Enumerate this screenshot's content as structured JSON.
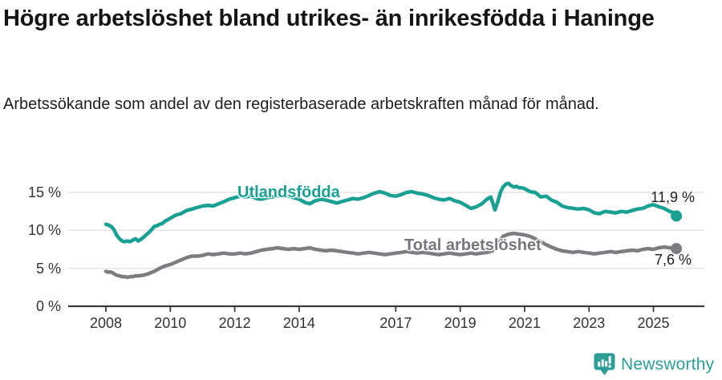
{
  "header": {
    "title": "Högre arbetslöshet bland utrikes- än inrikesfödda i Haninge",
    "subtitle": "Arbetssökande som andel av den registerbaserade arbetskraften månad för månad."
  },
  "footer": {
    "brand": "Newsworthy",
    "logo_icon": "bar-chart-speech-bubble-icon"
  },
  "colors": {
    "foreign_born_line": "#18A093",
    "total_line": "#7c7c81",
    "grid": "#e3e3e3",
    "axis": "#3b3b3b",
    "tick_label": "#333333",
    "logo_teal": "#2D9E95"
  },
  "chart_data": {
    "type": "line",
    "x_unit": "decimal_year",
    "xlim": [
      2007.9,
      2026.4
    ],
    "ylim": [
      0,
      16.5
    ],
    "grid": "horizontal",
    "legend_position": "inline-labels",
    "yticks": [
      {
        "value": 0,
        "label": "0 %"
      },
      {
        "value": 5,
        "label": "5 %"
      },
      {
        "value": 10,
        "label": "10 %"
      },
      {
        "value": 15,
        "label": "15 %"
      }
    ],
    "xticks": [
      {
        "value": 2008,
        "label": "2008"
      },
      {
        "value": 2010,
        "label": "2010"
      },
      {
        "value": 2012,
        "label": "2012"
      },
      {
        "value": 2014,
        "label": "2014"
      },
      {
        "value": 2017,
        "label": "2017"
      },
      {
        "value": 2019,
        "label": "2019"
      },
      {
        "value": 2021,
        "label": "2021"
      },
      {
        "value": 2023,
        "label": "2023"
      },
      {
        "value": 2025,
        "label": "2025"
      }
    ],
    "series": [
      {
        "name": "Utlandsfödda",
        "color": "#18A093",
        "end_label": "11,9 %",
        "end_value": 11.9,
        "points": [
          [
            2008.0,
            10.8
          ],
          [
            2008.08,
            10.7
          ],
          [
            2008.17,
            10.5
          ],
          [
            2008.25,
            10.1
          ],
          [
            2008.33,
            9.4
          ],
          [
            2008.42,
            8.9
          ],
          [
            2008.5,
            8.6
          ],
          [
            2008.58,
            8.5
          ],
          [
            2008.67,
            8.6
          ],
          [
            2008.75,
            8.5
          ],
          [
            2008.83,
            8.7
          ],
          [
            2008.92,
            8.9
          ],
          [
            2009.0,
            8.6
          ],
          [
            2009.08,
            8.8
          ],
          [
            2009.17,
            9.1
          ],
          [
            2009.25,
            9.4
          ],
          [
            2009.33,
            9.7
          ],
          [
            2009.42,
            10.1
          ],
          [
            2009.5,
            10.5
          ],
          [
            2009.58,
            10.6
          ],
          [
            2009.67,
            10.8
          ],
          [
            2009.75,
            10.9
          ],
          [
            2009.83,
            11.2
          ],
          [
            2009.92,
            11.4
          ],
          [
            2010.0,
            11.6
          ],
          [
            2010.17,
            12.0
          ],
          [
            2010.33,
            12.2
          ],
          [
            2010.5,
            12.6
          ],
          [
            2010.67,
            12.8
          ],
          [
            2010.83,
            13.0
          ],
          [
            2011.0,
            13.2
          ],
          [
            2011.17,
            13.3
          ],
          [
            2011.33,
            13.2
          ],
          [
            2011.5,
            13.5
          ],
          [
            2011.67,
            13.8
          ],
          [
            2011.83,
            14.1
          ],
          [
            2012.0,
            14.3
          ],
          [
            2012.17,
            14.5
          ],
          [
            2012.33,
            14.4
          ],
          [
            2012.5,
            14.5
          ],
          [
            2012.67,
            14.2
          ],
          [
            2012.83,
            14.1
          ],
          [
            2013.0,
            14.3
          ],
          [
            2013.17,
            14.4
          ],
          [
            2013.33,
            14.5
          ],
          [
            2013.5,
            14.6
          ],
          [
            2013.67,
            14.5
          ],
          [
            2013.83,
            14.3
          ],
          [
            2014.0,
            14.1
          ],
          [
            2014.17,
            13.7
          ],
          [
            2014.33,
            13.5
          ],
          [
            2014.5,
            13.9
          ],
          [
            2014.67,
            14.1
          ],
          [
            2014.83,
            14.0
          ],
          [
            2015.0,
            13.8
          ],
          [
            2015.17,
            13.6
          ],
          [
            2015.33,
            13.8
          ],
          [
            2015.5,
            14.0
          ],
          [
            2015.67,
            14.2
          ],
          [
            2015.83,
            14.1
          ],
          [
            2016.0,
            14.3
          ],
          [
            2016.17,
            14.6
          ],
          [
            2016.33,
            14.9
          ],
          [
            2016.5,
            15.1
          ],
          [
            2016.67,
            14.9
          ],
          [
            2016.83,
            14.6
          ],
          [
            2017.0,
            14.5
          ],
          [
            2017.17,
            14.7
          ],
          [
            2017.33,
            15.0
          ],
          [
            2017.5,
            15.1
          ],
          [
            2017.67,
            14.9
          ],
          [
            2017.83,
            14.8
          ],
          [
            2018.0,
            14.6
          ],
          [
            2018.17,
            14.3
          ],
          [
            2018.33,
            14.1
          ],
          [
            2018.5,
            14.0
          ],
          [
            2018.67,
            14.2
          ],
          [
            2018.83,
            13.9
          ],
          [
            2019.0,
            13.7
          ],
          [
            2019.17,
            13.3
          ],
          [
            2019.33,
            12.9
          ],
          [
            2019.5,
            13.1
          ],
          [
            2019.67,
            13.5
          ],
          [
            2019.83,
            14.1
          ],
          [
            2019.95,
            14.4
          ],
          [
            2020.08,
            12.7
          ],
          [
            2020.17,
            13.8
          ],
          [
            2020.25,
            15.0
          ],
          [
            2020.33,
            15.7
          ],
          [
            2020.42,
            16.1
          ],
          [
            2020.5,
            16.2
          ],
          [
            2020.58,
            15.9
          ],
          [
            2020.67,
            15.7
          ],
          [
            2020.75,
            15.8
          ],
          [
            2020.83,
            15.6
          ],
          [
            2020.92,
            15.6
          ],
          [
            2021.0,
            15.5
          ],
          [
            2021.17,
            15.1
          ],
          [
            2021.33,
            15.0
          ],
          [
            2021.5,
            14.4
          ],
          [
            2021.67,
            14.5
          ],
          [
            2021.83,
            14.0
          ],
          [
            2022.0,
            13.7
          ],
          [
            2022.17,
            13.2
          ],
          [
            2022.33,
            13.0
          ],
          [
            2022.5,
            12.9
          ],
          [
            2022.67,
            12.8
          ],
          [
            2022.83,
            12.9
          ],
          [
            2023.0,
            12.7
          ],
          [
            2023.17,
            12.3
          ],
          [
            2023.33,
            12.2
          ],
          [
            2023.5,
            12.5
          ],
          [
            2023.67,
            12.4
          ],
          [
            2023.83,
            12.3
          ],
          [
            2024.0,
            12.5
          ],
          [
            2024.17,
            12.4
          ],
          [
            2024.33,
            12.6
          ],
          [
            2024.5,
            12.8
          ],
          [
            2024.67,
            12.9
          ],
          [
            2024.83,
            13.2
          ],
          [
            2025.0,
            13.4
          ],
          [
            2025.17,
            13.1
          ],
          [
            2025.33,
            12.9
          ],
          [
            2025.5,
            12.5
          ],
          [
            2025.58,
            12.4
          ],
          [
            2025.71,
            11.9
          ]
        ]
      },
      {
        "name": "Total arbetslöshet",
        "color": "#7c7c81",
        "end_label": "7,6 %",
        "end_value": 7.6,
        "points": [
          [
            2008.0,
            4.6
          ],
          [
            2008.08,
            4.5
          ],
          [
            2008.17,
            4.5
          ],
          [
            2008.25,
            4.3
          ],
          [
            2008.33,
            4.1
          ],
          [
            2008.42,
            4.0
          ],
          [
            2008.5,
            3.9
          ],
          [
            2008.58,
            3.9
          ],
          [
            2008.67,
            3.8
          ],
          [
            2008.75,
            3.9
          ],
          [
            2008.83,
            3.9
          ],
          [
            2008.92,
            4.0
          ],
          [
            2009.0,
            4.0
          ],
          [
            2009.17,
            4.1
          ],
          [
            2009.33,
            4.3
          ],
          [
            2009.5,
            4.6
          ],
          [
            2009.67,
            5.0
          ],
          [
            2009.83,
            5.3
          ],
          [
            2010.0,
            5.5
          ],
          [
            2010.17,
            5.8
          ],
          [
            2010.33,
            6.1
          ],
          [
            2010.5,
            6.4
          ],
          [
            2010.67,
            6.6
          ],
          [
            2010.83,
            6.6
          ],
          [
            2011.0,
            6.7
          ],
          [
            2011.17,
            6.9
          ],
          [
            2011.33,
            6.8
          ],
          [
            2011.5,
            6.9
          ],
          [
            2011.67,
            7.0
          ],
          [
            2011.83,
            6.9
          ],
          [
            2012.0,
            6.9
          ],
          [
            2012.17,
            7.0
          ],
          [
            2012.33,
            6.9
          ],
          [
            2012.5,
            7.0
          ],
          [
            2012.67,
            7.2
          ],
          [
            2012.83,
            7.4
          ],
          [
            2013.0,
            7.5
          ],
          [
            2013.17,
            7.6
          ],
          [
            2013.33,
            7.7
          ],
          [
            2013.5,
            7.6
          ],
          [
            2013.67,
            7.5
          ],
          [
            2013.83,
            7.6
          ],
          [
            2014.0,
            7.5
          ],
          [
            2014.17,
            7.6
          ],
          [
            2014.33,
            7.7
          ],
          [
            2014.5,
            7.5
          ],
          [
            2014.67,
            7.4
          ],
          [
            2014.83,
            7.3
          ],
          [
            2015.0,
            7.4
          ],
          [
            2015.17,
            7.3
          ],
          [
            2015.33,
            7.2
          ],
          [
            2015.5,
            7.1
          ],
          [
            2015.67,
            7.0
          ],
          [
            2015.83,
            6.9
          ],
          [
            2016.0,
            7.0
          ],
          [
            2016.17,
            7.1
          ],
          [
            2016.33,
            7.0
          ],
          [
            2016.5,
            6.9
          ],
          [
            2016.67,
            6.8
          ],
          [
            2016.83,
            6.9
          ],
          [
            2017.0,
            7.0
          ],
          [
            2017.17,
            7.1
          ],
          [
            2017.33,
            7.2
          ],
          [
            2017.5,
            7.1
          ],
          [
            2017.67,
            7.0
          ],
          [
            2017.83,
            7.1
          ],
          [
            2018.0,
            7.0
          ],
          [
            2018.17,
            6.9
          ],
          [
            2018.33,
            6.8
          ],
          [
            2018.5,
            6.9
          ],
          [
            2018.67,
            7.0
          ],
          [
            2018.83,
            6.9
          ],
          [
            2019.0,
            6.8
          ],
          [
            2019.17,
            6.9
          ],
          [
            2019.33,
            7.0
          ],
          [
            2019.5,
            6.9
          ],
          [
            2019.67,
            7.0
          ],
          [
            2019.83,
            7.1
          ],
          [
            2020.0,
            7.3
          ],
          [
            2020.17,
            8.2
          ],
          [
            2020.33,
            9.2
          ],
          [
            2020.5,
            9.5
          ],
          [
            2020.67,
            9.6
          ],
          [
            2020.83,
            9.5
          ],
          [
            2021.0,
            9.4
          ],
          [
            2021.17,
            9.2
          ],
          [
            2021.33,
            8.9
          ],
          [
            2021.5,
            8.5
          ],
          [
            2021.67,
            8.1
          ],
          [
            2021.83,
            7.8
          ],
          [
            2022.0,
            7.5
          ],
          [
            2022.17,
            7.3
          ],
          [
            2022.33,
            7.2
          ],
          [
            2022.5,
            7.1
          ],
          [
            2022.67,
            7.2
          ],
          [
            2022.83,
            7.1
          ],
          [
            2023.0,
            7.0
          ],
          [
            2023.17,
            6.9
          ],
          [
            2023.33,
            7.0
          ],
          [
            2023.5,
            7.1
          ],
          [
            2023.67,
            7.2
          ],
          [
            2023.83,
            7.1
          ],
          [
            2024.0,
            7.2
          ],
          [
            2024.17,
            7.3
          ],
          [
            2024.33,
            7.4
          ],
          [
            2024.5,
            7.3
          ],
          [
            2024.67,
            7.5
          ],
          [
            2024.83,
            7.6
          ],
          [
            2025.0,
            7.5
          ],
          [
            2025.17,
            7.7
          ],
          [
            2025.33,
            7.8
          ],
          [
            2025.5,
            7.7
          ],
          [
            2025.71,
            7.6
          ]
        ]
      }
    ]
  }
}
